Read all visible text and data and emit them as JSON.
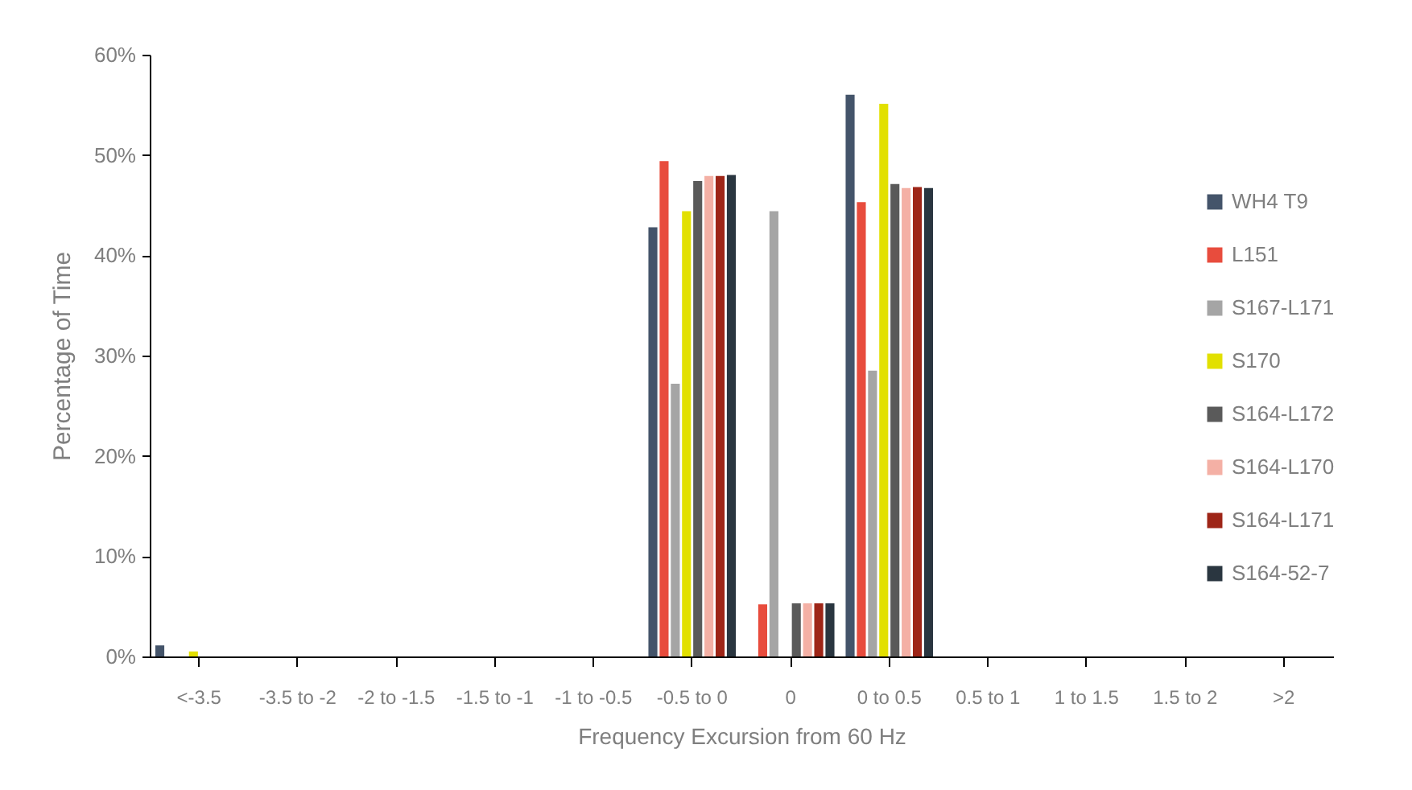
{
  "chart_data": {
    "type": "bar",
    "xlabel": "Frequency Excursion from 60 Hz",
    "ylabel": "Percentage of Time",
    "categories": [
      "<-3.5",
      "-3.5 to -2",
      "-2 to -1.5",
      "-1.5 to -1",
      "-1 to -0.5",
      "-0.5 to 0",
      "0",
      "0 to 0.5",
      "0.5 to 1",
      "1 to 1.5",
      "1.5 to 2",
      ">2"
    ],
    "series": [
      {
        "name": "WH4 T9",
        "color": "#44546a",
        "values": [
          1.1,
          0,
          0,
          0,
          0,
          42.8,
          0,
          56.0,
          0,
          0,
          0,
          0
        ]
      },
      {
        "name": "L151",
        "color": "#e84c3d",
        "values": [
          0,
          0,
          0,
          0,
          0,
          49.4,
          5.2,
          45.3,
          0,
          0,
          0,
          0
        ]
      },
      {
        "name": "S167-L171",
        "color": "#a5a5a5",
        "values": [
          0,
          0,
          0,
          0,
          0,
          27.2,
          44.4,
          28.5,
          0,
          0,
          0,
          0
        ]
      },
      {
        "name": "S170",
        "color": "#e2e000",
        "values": [
          0.5,
          0,
          0,
          0,
          0,
          44.4,
          0,
          55.1,
          0,
          0,
          0,
          0
        ]
      },
      {
        "name": "S164-L172",
        "color": "#5a5a5a",
        "values": [
          0,
          0,
          0,
          0,
          0,
          47.4,
          5.3,
          47.1,
          0,
          0,
          0,
          0
        ]
      },
      {
        "name": "S164-L170",
        "color": "#f4b0a5",
        "values": [
          0,
          0,
          0,
          0,
          0,
          47.9,
          5.3,
          46.7,
          0,
          0,
          0,
          0
        ]
      },
      {
        "name": "S164-L171",
        "color": "#9e2517",
        "values": [
          0,
          0,
          0,
          0,
          0,
          47.9,
          5.3,
          46.8,
          0,
          0,
          0,
          0
        ]
      },
      {
        "name": "S164-52-7",
        "color": "#2a3640",
        "values": [
          0,
          0,
          0,
          0,
          0,
          48.0,
          5.3,
          46.7,
          0,
          0,
          0,
          0
        ]
      }
    ],
    "ylim": [
      0,
      60
    ],
    "yticks": [
      {
        "value": 0,
        "label": "0%"
      },
      {
        "value": 10,
        "label": "10%"
      },
      {
        "value": 20,
        "label": "20%"
      },
      {
        "value": 30,
        "label": "30%"
      },
      {
        "value": 40,
        "label": "40%"
      },
      {
        "value": 50,
        "label": "50%"
      },
      {
        "value": 60,
        "label": "60%"
      }
    ],
    "grid": false,
    "legend": "right"
  }
}
